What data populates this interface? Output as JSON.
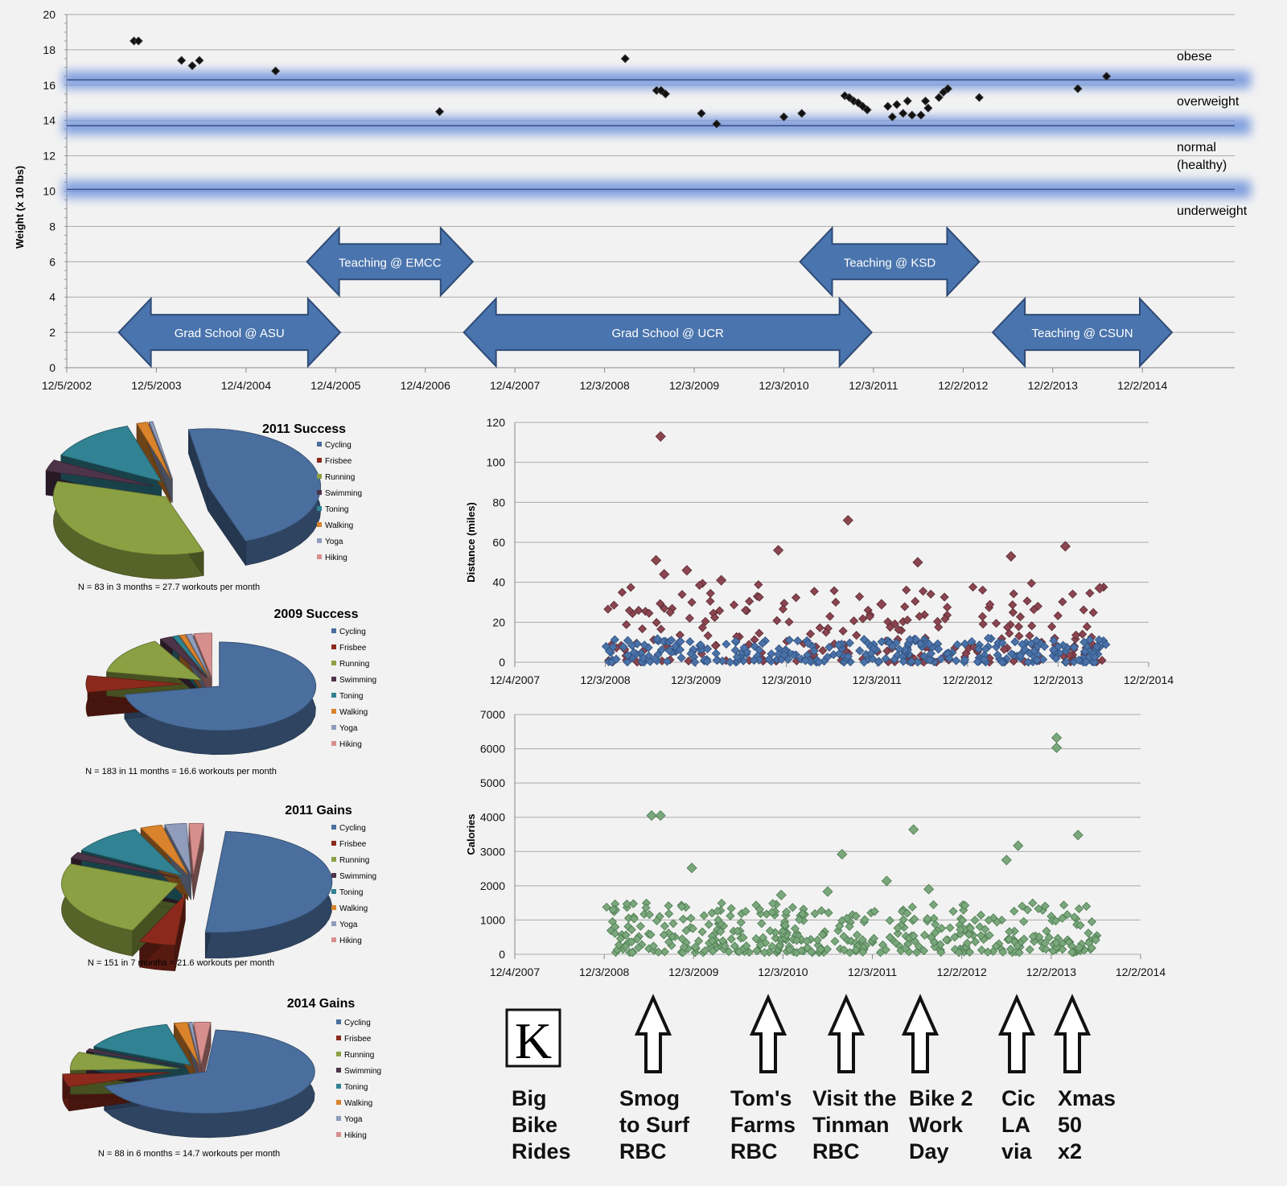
{
  "colors": {
    "cycling": "#4a6e9d",
    "frisbee": "#8b2a1c",
    "running": "#8ba042",
    "swimming": "#4e3449",
    "toning": "#318292",
    "walking": "#d9832c",
    "yoga": "#909cbb",
    "hiking": "#d78f8e",
    "band": "#6f93dc",
    "arrow_fill": "#4a74ad",
    "distance_red": "#8a4550",
    "distance_blue": "#4a72a8",
    "calories_green": "#7aa77b"
  },
  "chart_data": [
    {
      "id": "weight",
      "type": "scatter",
      "ylabel": "Weight (x 10 lbs)",
      "ylim": [
        0,
        20
      ],
      "yticks": [
        "0",
        "2",
        "4",
        "6",
        "8",
        "10",
        "12",
        "14",
        "16",
        "18",
        "20"
      ],
      "xticks": [
        "12/5/2002",
        "12/5/2003",
        "12/4/2004",
        "12/4/2005",
        "12/4/2006",
        "12/4/2007",
        "12/3/2008",
        "12/3/2009",
        "12/3/2010",
        "12/3/2011",
        "12/2/2012",
        "12/2/2013",
        "12/2/2014"
      ],
      "x_range_years": [
        2002.92,
        2015.95
      ],
      "bands": [
        {
          "y": 16.3,
          "label": "obese"
        },
        {
          "y": 13.7,
          "label": "overweight"
        },
        {
          "y": 10.1,
          "label": "normal"
        }
      ],
      "zone_labels": [
        "obese",
        "overweight",
        "normal",
        "(healthy)",
        "underweight"
      ],
      "spans": [
        {
          "label": "Grad School @ ASU",
          "start": 2003.5,
          "end": 2005.97,
          "y": 2
        },
        {
          "label": "Teaching @ EMCC",
          "start": 2005.6,
          "end": 2007.45,
          "y": 6
        },
        {
          "label": "Grad School @ UCR",
          "start": 2007.35,
          "end": 2011.9,
          "y": 2
        },
        {
          "label": "Teaching @ KSD",
          "start": 2011.1,
          "end": 2013.1,
          "y": 6
        },
        {
          "label": "Teaching @ CSUN",
          "start": 2013.25,
          "end": 2015.25,
          "y": 2
        }
      ],
      "points": [
        [
          2003.67,
          18.5
        ],
        [
          2003.72,
          18.5
        ],
        [
          2004.2,
          17.4
        ],
        [
          2004.32,
          17.1
        ],
        [
          2004.4,
          17.4
        ],
        [
          2005.25,
          16.8
        ],
        [
          2007.08,
          14.5
        ],
        [
          2009.15,
          17.5
        ],
        [
          2009.5,
          15.7
        ],
        [
          2009.55,
          15.7
        ],
        [
          2009.6,
          15.5
        ],
        [
          2010.0,
          14.4
        ],
        [
          2010.17,
          13.8
        ],
        [
          2010.92,
          14.2
        ],
        [
          2011.12,
          14.4
        ],
        [
          2011.6,
          15.4
        ],
        [
          2011.65,
          15.3
        ],
        [
          2011.7,
          15.1
        ],
        [
          2011.75,
          15.0
        ],
        [
          2011.8,
          14.8
        ],
        [
          2011.85,
          14.6
        ],
        [
          2012.08,
          14.8
        ],
        [
          2012.13,
          14.2
        ],
        [
          2012.18,
          14.9
        ],
        [
          2012.25,
          14.4
        ],
        [
          2012.3,
          15.1
        ],
        [
          2012.35,
          14.3
        ],
        [
          2012.45,
          14.3
        ],
        [
          2012.5,
          15.1
        ],
        [
          2012.53,
          14.7
        ],
        [
          2012.65,
          15.3
        ],
        [
          2012.7,
          15.6
        ],
        [
          2012.75,
          15.8
        ],
        [
          2013.1,
          15.3
        ],
        [
          2014.2,
          15.8
        ],
        [
          2014.52,
          16.5
        ]
      ]
    },
    {
      "id": "distance",
      "type": "scatter",
      "ylabel": "Distance (miles)",
      "ylim": [
        0,
        120
      ],
      "yticks": [
        "0",
        "20",
        "40",
        "60",
        "80",
        "100",
        "120"
      ],
      "xticks": [
        "12/4/2007",
        "12/3/2008",
        "12/3/2009",
        "12/3/2010",
        "12/3/2011",
        "12/2/2012",
        "12/2/2013",
        "12/2/2014"
      ],
      "x_range_years": [
        2007.92,
        2014.92
      ],
      "outliers": [
        [
          2009.53,
          113
        ],
        [
          2011.6,
          71
        ],
        [
          2010.83,
          56
        ],
        [
          2012.37,
          50
        ],
        [
          2013.4,
          53
        ],
        [
          2014.0,
          58
        ],
        [
          2009.48,
          51
        ],
        [
          2009.57,
          44
        ],
        [
          2009.82,
          46
        ],
        [
          2010.2,
          41
        ],
        [
          2011.97,
          29
        ],
        [
          2014.38,
          37
        ]
      ],
      "clusters": [
        {
          "series": "red",
          "start": 2008.92,
          "end": 2014.45,
          "count": 230,
          "min": 0,
          "max": 40,
          "seed": 11
        },
        {
          "series": "blue",
          "start": 2008.92,
          "end": 2014.45,
          "count": 300,
          "min": 0,
          "max": 12,
          "seed": 29
        }
      ]
    },
    {
      "id": "calories",
      "type": "scatter",
      "ylabel": "Calories",
      "ylim": [
        0,
        7000
      ],
      "yticks": [
        "0",
        "1000",
        "2000",
        "3000",
        "4000",
        "5000",
        "6000",
        "7000"
      ],
      "xticks": [
        "12/4/2007",
        "12/3/2008",
        "12/3/2009",
        "12/3/2010",
        "12/3/2011",
        "12/2/2012",
        "12/2/2013",
        "12/2/2014"
      ],
      "x_range_years": [
        2007.92,
        2014.92
      ],
      "outliers": [
        [
          2009.45,
          4050
        ],
        [
          2009.55,
          4050
        ],
        [
          2009.9,
          2520
        ],
        [
          2011.58,
          2920
        ],
        [
          2012.38,
          3640
        ],
        [
          2013.55,
          3170
        ],
        [
          2013.98,
          6320
        ],
        [
          2013.98,
          6030
        ],
        [
          2014.22,
          3480
        ],
        [
          2012.08,
          2140
        ],
        [
          2013.42,
          2750
        ],
        [
          2010.9,
          1730
        ],
        [
          2011.42,
          1830
        ],
        [
          2012.55,
          1900
        ]
      ],
      "clusters": [
        {
          "series": "green",
          "start": 2008.92,
          "end": 2014.45,
          "count": 420,
          "min": 50,
          "max": 1500,
          "seed": 47
        }
      ]
    },
    {
      "id": "pie-2011-success",
      "type": "pie",
      "title": "2011 Success",
      "note": "N = 83  in 3 months = 27.7 workouts per month",
      "labels": [
        "Cycling",
        "Frisbee",
        "Running",
        "Swimming",
        "Toning",
        "Walking",
        "Yoga",
        "Hiking"
      ],
      "values": [
        45,
        0,
        33,
        3,
        12,
        1.5,
        0.5,
        0
      ]
    },
    {
      "id": "pie-2009-success",
      "type": "pie",
      "title": "2009 Success",
      "note": "N = 183  in 11 months = 16.6 workouts per month",
      "labels": [
        "Cycling",
        "Frisbee",
        "Running",
        "Swimming",
        "Toning",
        "Walking",
        "Yoga",
        "Hiking"
      ],
      "values": [
        72,
        6,
        14,
        2,
        1,
        1,
        1,
        3
      ]
    },
    {
      "id": "pie-2011-gains",
      "type": "pie",
      "title": "2011 Gains",
      "note": "N = 151  in 7 months = 21.6 workouts per month",
      "labels": [
        "Cycling",
        "Frisbee",
        "Running",
        "Swimming",
        "Toning",
        "Walking",
        "Yoga",
        "Hiking"
      ],
      "values": [
        50,
        5,
        25,
        2,
        10,
        3,
        3,
        2
      ]
    },
    {
      "id": "pie-2014-gains",
      "type": "pie",
      "title": "2014 Gains",
      "note": "N = 88  in 6 months = 14.7 workouts per month",
      "labels": [
        "Cycling",
        "Frisbee",
        "Running",
        "Swimming",
        "Toning",
        "Walking",
        "Yoga",
        "Hiking"
      ],
      "values": [
        68,
        5,
        7,
        1,
        14,
        2,
        0.5,
        2.5
      ]
    }
  ],
  "annotations": {
    "logo_letter": "K",
    "items": [
      {
        "lines": [
          "Big",
          "Bike",
          "Rides"
        ],
        "arrow": false
      },
      {
        "lines": [
          "Smog",
          "to Surf",
          "RBC"
        ],
        "arrow": true
      },
      {
        "lines": [
          "Tom's",
          "Farms",
          "RBC"
        ],
        "arrow": true
      },
      {
        "lines": [
          "Visit the",
          "Tinman",
          "RBC"
        ],
        "arrow": true
      },
      {
        "lines": [
          "Bike 2",
          "Work",
          "Day"
        ],
        "arrow": true
      },
      {
        "lines": [
          "Cic",
          "LA",
          "via"
        ],
        "arrow": true
      },
      {
        "lines": [
          "Xmas",
          "50",
          "x2"
        ],
        "arrow": true
      }
    ]
  }
}
